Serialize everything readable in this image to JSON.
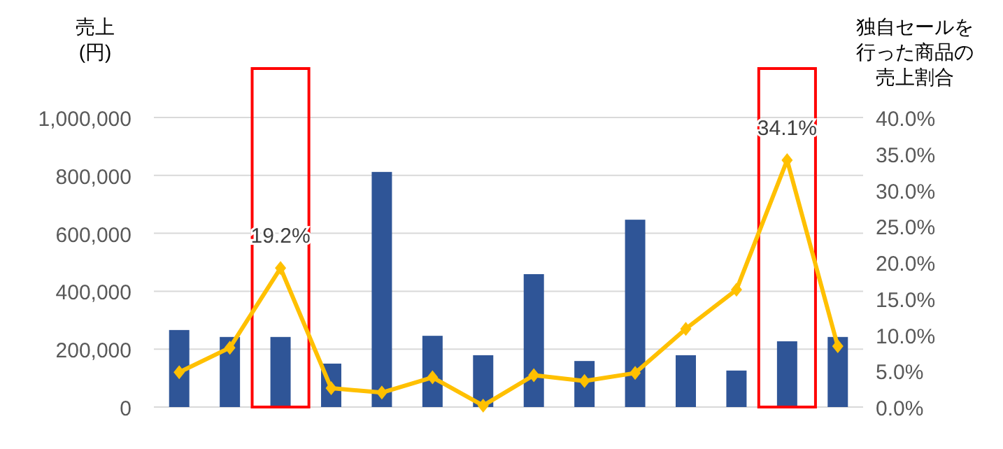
{
  "chart_data": {
    "type": "bar",
    "ylabel": "売上(円)",
    "y2label": "独自セールを行った商品の売上割合",
    "categories": [
      null,
      null,
      null,
      null,
      null,
      null,
      null,
      null,
      null,
      null,
      null,
      null,
      null,
      null
    ],
    "series": [
      {
        "color": "#2f5597",
        "values": [
          266000,
          242000,
          242000,
          150000,
          812000,
          246000,
          179000,
          459000,
          159000,
          647000,
          179000,
          126000,
          227000,
          242000
        ]
      },
      {
        "type": "line",
        "axis": "y2",
        "color": "#ffc000",
        "marker": "diamond",
        "values": [
          4.8,
          8.2,
          19.2,
          2.6,
          2.0,
          4.1,
          0.2,
          4.4,
          3.6,
          4.7,
          10.8,
          16.2,
          34.1,
          8.4
        ],
        "value_labels": [
          null,
          null,
          "19.2%",
          null,
          null,
          null,
          null,
          null,
          null,
          null,
          null,
          null,
          "34.1%",
          null
        ]
      }
    ],
    "ylim": [
      0,
      1000000
    ],
    "yticks": [
      {
        "value": 0,
        "label": "0"
      },
      {
        "value": 200000,
        "label": "200,000"
      },
      {
        "value": 400000,
        "label": "400,000"
      },
      {
        "value": 600000,
        "label": "600,000"
      },
      {
        "value": 800000,
        "label": "800,000"
      },
      {
        "value": 1000000,
        "label": "1,000,000"
      }
    ],
    "y2lim": [
      0,
      40
    ],
    "y2ticks": [
      {
        "value": 0,
        "label": "0.0%"
      },
      {
        "value": 5,
        "label": "5.0%"
      },
      {
        "value": 10,
        "label": "10.0%"
      },
      {
        "value": 15,
        "label": "15.0%"
      },
      {
        "value": 20,
        "label": "20.0%"
      },
      {
        "value": 25,
        "label": "25.0%"
      },
      {
        "value": 30,
        "label": "30.0%"
      },
      {
        "value": 35,
        "label": "35.0%"
      },
      {
        "value": 40,
        "label": "40.0%"
      }
    ],
    "grid": "y"
  }
}
